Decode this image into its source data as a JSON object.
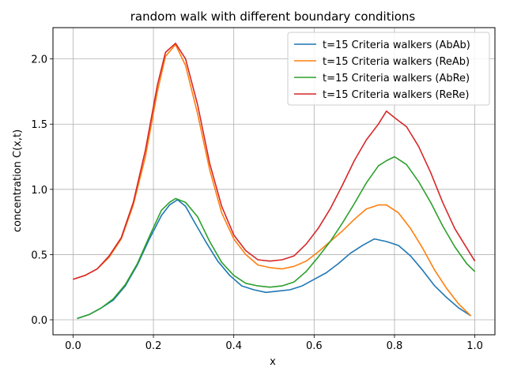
{
  "chart_data": {
    "type": "line",
    "title": "random walk with different boundary conditions",
    "xlabel": "x",
    "ylabel": "concentration C(x,t)",
    "xlim": [
      -0.05,
      1.05
    ],
    "ylim": [
      -0.115,
      2.24
    ],
    "xticks": [
      0.0,
      0.2,
      0.4,
      0.6,
      0.8,
      1.0
    ],
    "xtick_labels": [
      "0.0",
      "0.2",
      "0.4",
      "0.6",
      "0.8",
      "1.0"
    ],
    "yticks": [
      0.0,
      0.5,
      1.0,
      1.5,
      2.0
    ],
    "ytick_labels": [
      "0.0",
      "0.5",
      "1.0",
      "1.5",
      "2.0"
    ],
    "grid": true,
    "legend_position": "top-right",
    "series": [
      {
        "name": "t=15 Criteria walkers (AbAb)",
        "color": "#1f77b4",
        "points": [
          [
            0.01,
            0.01
          ],
          [
            0.04,
            0.04
          ],
          [
            0.07,
            0.09
          ],
          [
            0.1,
            0.15
          ],
          [
            0.13,
            0.26
          ],
          [
            0.16,
            0.42
          ],
          [
            0.19,
            0.62
          ],
          [
            0.22,
            0.8
          ],
          [
            0.24,
            0.88
          ],
          [
            0.26,
            0.92
          ],
          [
            0.28,
            0.87
          ],
          [
            0.3,
            0.76
          ],
          [
            0.33,
            0.6
          ],
          [
            0.36,
            0.45
          ],
          [
            0.39,
            0.34
          ],
          [
            0.42,
            0.26
          ],
          [
            0.45,
            0.23
          ],
          [
            0.48,
            0.21
          ],
          [
            0.51,
            0.22
          ],
          [
            0.54,
            0.23
          ],
          [
            0.57,
            0.26
          ],
          [
            0.6,
            0.31
          ],
          [
            0.63,
            0.36
          ],
          [
            0.66,
            0.43
          ],
          [
            0.69,
            0.51
          ],
          [
            0.72,
            0.57
          ],
          [
            0.75,
            0.62
          ],
          [
            0.78,
            0.6
          ],
          [
            0.81,
            0.57
          ],
          [
            0.84,
            0.49
          ],
          [
            0.87,
            0.38
          ],
          [
            0.9,
            0.26
          ],
          [
            0.93,
            0.17
          ],
          [
            0.96,
            0.09
          ],
          [
            0.99,
            0.03
          ]
        ]
      },
      {
        "name": "t=15 Criteria walkers (ReAb)",
        "color": "#ff7f0e",
        "points": [
          [
            0.0,
            0.31
          ],
          [
            0.03,
            0.34
          ],
          [
            0.06,
            0.39
          ],
          [
            0.09,
            0.48
          ],
          [
            0.12,
            0.62
          ],
          [
            0.15,
            0.88
          ],
          [
            0.18,
            1.25
          ],
          [
            0.21,
            1.75
          ],
          [
            0.23,
            2.02
          ],
          [
            0.255,
            2.11
          ],
          [
            0.28,
            1.95
          ],
          [
            0.31,
            1.58
          ],
          [
            0.34,
            1.15
          ],
          [
            0.37,
            0.82
          ],
          [
            0.4,
            0.62
          ],
          [
            0.43,
            0.5
          ],
          [
            0.46,
            0.42
          ],
          [
            0.49,
            0.4
          ],
          [
            0.52,
            0.39
          ],
          [
            0.55,
            0.41
          ],
          [
            0.58,
            0.45
          ],
          [
            0.61,
            0.52
          ],
          [
            0.64,
            0.6
          ],
          [
            0.67,
            0.68
          ],
          [
            0.7,
            0.77
          ],
          [
            0.73,
            0.85
          ],
          [
            0.76,
            0.88
          ],
          [
            0.78,
            0.88
          ],
          [
            0.81,
            0.82
          ],
          [
            0.84,
            0.7
          ],
          [
            0.87,
            0.55
          ],
          [
            0.9,
            0.38
          ],
          [
            0.93,
            0.24
          ],
          [
            0.96,
            0.12
          ],
          [
            0.99,
            0.03
          ]
        ]
      },
      {
        "name": "t=15 Criteria walkers (AbRe)",
        "color": "#2ca02c",
        "points": [
          [
            0.01,
            0.01
          ],
          [
            0.04,
            0.04
          ],
          [
            0.07,
            0.09
          ],
          [
            0.1,
            0.16
          ],
          [
            0.13,
            0.27
          ],
          [
            0.16,
            0.43
          ],
          [
            0.19,
            0.64
          ],
          [
            0.22,
            0.84
          ],
          [
            0.24,
            0.9
          ],
          [
            0.255,
            0.93
          ],
          [
            0.28,
            0.9
          ],
          [
            0.31,
            0.79
          ],
          [
            0.34,
            0.6
          ],
          [
            0.37,
            0.44
          ],
          [
            0.4,
            0.34
          ],
          [
            0.43,
            0.28
          ],
          [
            0.46,
            0.26
          ],
          [
            0.49,
            0.25
          ],
          [
            0.52,
            0.26
          ],
          [
            0.55,
            0.29
          ],
          [
            0.58,
            0.37
          ],
          [
            0.61,
            0.48
          ],
          [
            0.64,
            0.6
          ],
          [
            0.67,
            0.74
          ],
          [
            0.7,
            0.89
          ],
          [
            0.73,
            1.05
          ],
          [
            0.76,
            1.18
          ],
          [
            0.78,
            1.22
          ],
          [
            0.8,
            1.25
          ],
          [
            0.83,
            1.19
          ],
          [
            0.86,
            1.06
          ],
          [
            0.89,
            0.9
          ],
          [
            0.92,
            0.72
          ],
          [
            0.95,
            0.56
          ],
          [
            0.98,
            0.43
          ],
          [
            1.0,
            0.37
          ]
        ]
      },
      {
        "name": "t=15 Criteria walkers (ReRe)",
        "color": "#d62728",
        "points": [
          [
            0.0,
            0.31
          ],
          [
            0.03,
            0.34
          ],
          [
            0.06,
            0.39
          ],
          [
            0.09,
            0.49
          ],
          [
            0.12,
            0.63
          ],
          [
            0.15,
            0.9
          ],
          [
            0.18,
            1.3
          ],
          [
            0.21,
            1.8
          ],
          [
            0.23,
            2.05
          ],
          [
            0.255,
            2.12
          ],
          [
            0.28,
            2.0
          ],
          [
            0.31,
            1.65
          ],
          [
            0.34,
            1.2
          ],
          [
            0.37,
            0.87
          ],
          [
            0.4,
            0.65
          ],
          [
            0.43,
            0.53
          ],
          [
            0.46,
            0.46
          ],
          [
            0.49,
            0.45
          ],
          [
            0.52,
            0.46
          ],
          [
            0.55,
            0.49
          ],
          [
            0.58,
            0.58
          ],
          [
            0.61,
            0.7
          ],
          [
            0.64,
            0.85
          ],
          [
            0.67,
            1.03
          ],
          [
            0.7,
            1.22
          ],
          [
            0.73,
            1.38
          ],
          [
            0.76,
            1.5
          ],
          [
            0.78,
            1.6
          ],
          [
            0.8,
            1.55
          ],
          [
            0.83,
            1.48
          ],
          [
            0.86,
            1.33
          ],
          [
            0.89,
            1.13
          ],
          [
            0.92,
            0.9
          ],
          [
            0.95,
            0.7
          ],
          [
            0.98,
            0.55
          ],
          [
            1.0,
            0.45
          ]
        ]
      }
    ]
  }
}
